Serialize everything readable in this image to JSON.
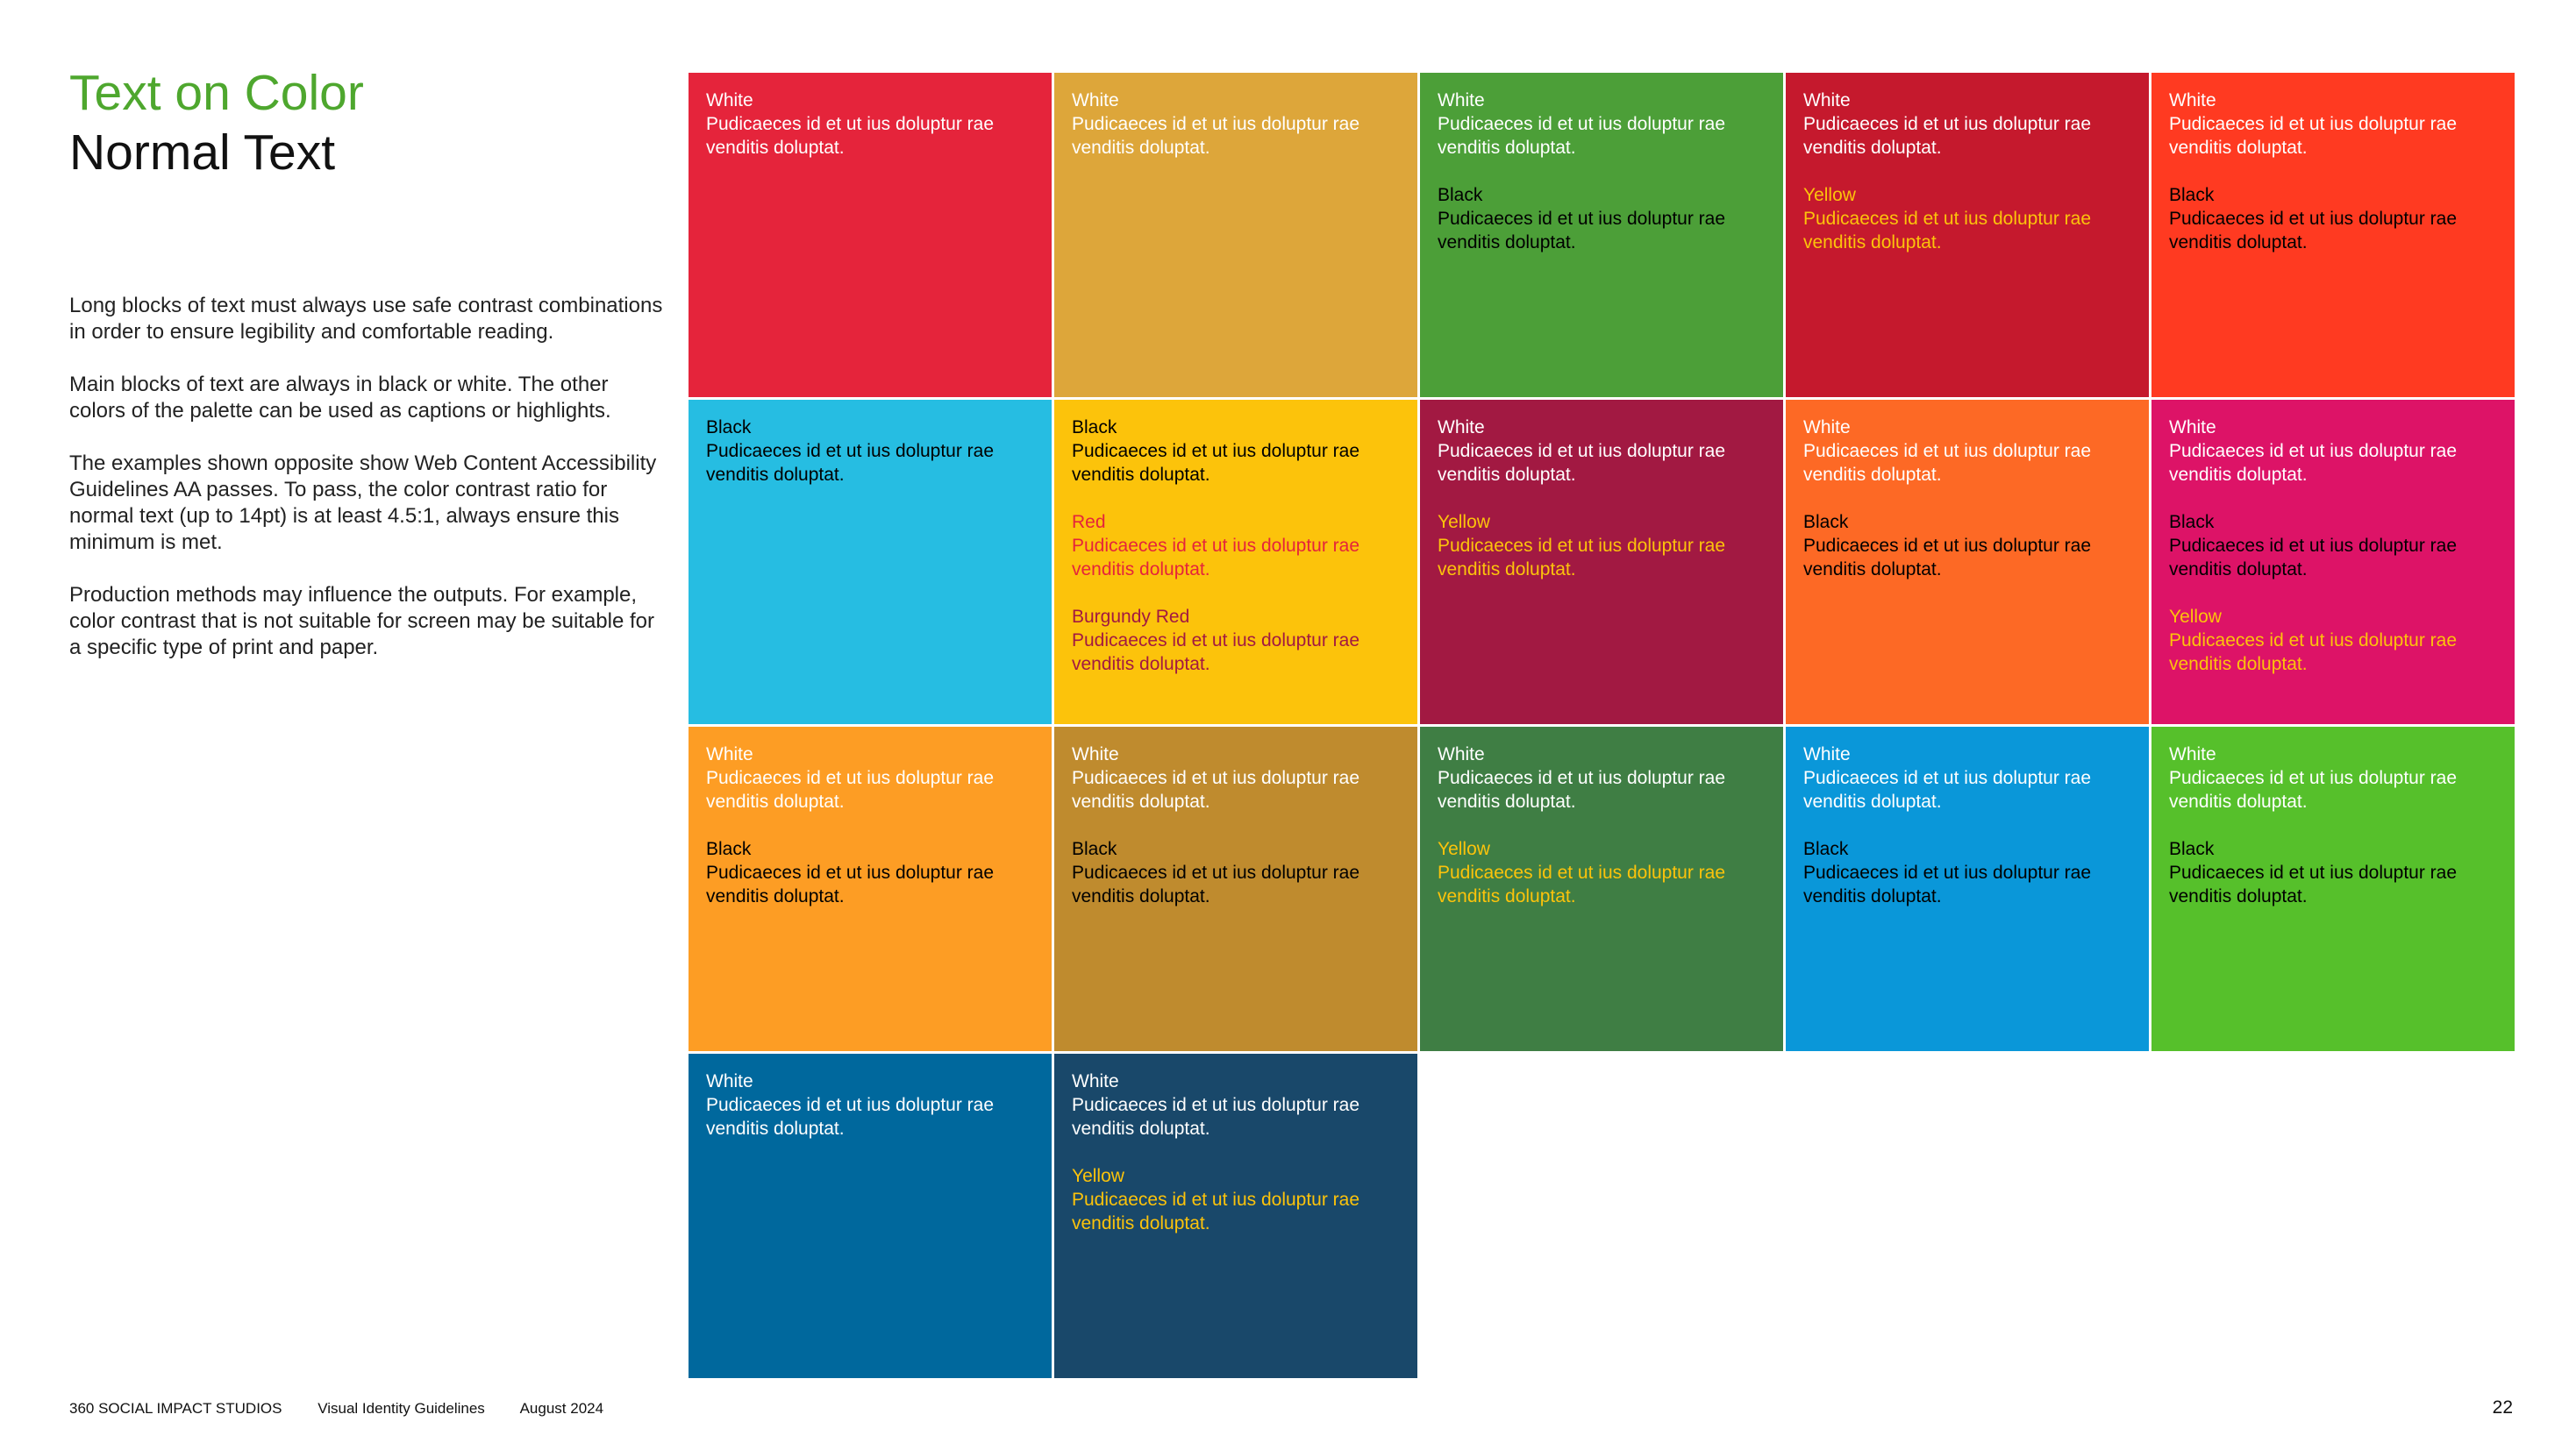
{
  "heading": {
    "title": "Text on Color",
    "subtitle": "Normal Text"
  },
  "intro": [
    "Long blocks of text must always use safe contrast combinations in order to ensure legibility and comfortable reading.",
    "Main blocks of text are always in black or white. The other colors of the palette can be used as captions or highlights.",
    "The examples shown opposite show Web Content Accessibility Guidelines AA passes. To pass, the color contrast ratio for normal text (up to 14pt) is at least 4.5:1, always ensure this minimum is met.",
    "Production methods may influence the outputs. For example, color contrast that is not suitable for screen may be suitable for a specific type of print and paper."
  ],
  "colors": {
    "title_green": "#4ea72e",
    "white": "#ffffff",
    "black": "#000000",
    "yellow": "#fcc30b",
    "red": "#e5243b",
    "burgundy_red": "#a21942"
  },
  "swatches": [
    {
      "bg": "#e5243b",
      "samples": [
        {
          "label": "White",
          "color": "#ffffff",
          "text": "Pudicaeces id et ut ius doluptur rae venditis doluptat."
        }
      ]
    },
    {
      "bg": "#dda63a",
      "samples": [
        {
          "label": "White",
          "color": "#ffffff",
          "text": "Pudicaeces id et ut ius doluptur rae venditis doluptat."
        }
      ]
    },
    {
      "bg": "#4c9f38",
      "samples": [
        {
          "label": "White",
          "color": "#ffffff",
          "text": "Pudicaeces id et ut ius doluptur rae venditis doluptat."
        },
        {
          "label": "Black",
          "color": "#000000",
          "text": "Pudicaeces id et ut ius doluptur rae venditis doluptat."
        }
      ]
    },
    {
      "bg": "#c5192d",
      "samples": [
        {
          "label": "White",
          "color": "#ffffff",
          "text": "Pudicaeces id et ut ius doluptur rae venditis doluptat."
        },
        {
          "label": "Yellow",
          "color": "#fcc30b",
          "text": "Pudicaeces id et ut ius doluptur rae venditis doluptat."
        }
      ]
    },
    {
      "bg": "#ff3a21",
      "samples": [
        {
          "label": "White",
          "color": "#ffffff",
          "text": "Pudicaeces id et ut ius doluptur rae venditis doluptat."
        },
        {
          "label": "Black",
          "color": "#000000",
          "text": "Pudicaeces id et ut ius doluptur rae venditis doluptat."
        }
      ]
    },
    {
      "bg": "#26bde2",
      "samples": [
        {
          "label": "Black",
          "color": "#000000",
          "text": "Pudicaeces id et ut ius doluptur rae venditis doluptat."
        }
      ]
    },
    {
      "bg": "#fcc30b",
      "samples": [
        {
          "label": "Black",
          "color": "#000000",
          "text": "Pudicaeces id et ut ius doluptur rae venditis doluptat."
        },
        {
          "label": "Red",
          "color": "#e5243b",
          "text": "Pudicaeces id et ut ius doluptur rae venditis doluptat."
        },
        {
          "label": "Burgundy Red",
          "color": "#a21942",
          "text": "Pudicaeces id et ut ius doluptur rae venditis doluptat."
        }
      ]
    },
    {
      "bg": "#a21942",
      "samples": [
        {
          "label": "White",
          "color": "#ffffff",
          "text": "Pudicaeces id et ut ius doluptur rae venditis doluptat."
        },
        {
          "label": "Yellow",
          "color": "#fcc30b",
          "text": "Pudicaeces id et ut ius doluptur rae venditis doluptat."
        }
      ]
    },
    {
      "bg": "#fd6925",
      "samples": [
        {
          "label": "White",
          "color": "#ffffff",
          "text": "Pudicaeces id et ut ius doluptur rae venditis doluptat."
        },
        {
          "label": "Black",
          "color": "#000000",
          "text": "Pudicaeces id et ut ius doluptur rae venditis doluptat."
        }
      ]
    },
    {
      "bg": "#dd1367",
      "samples": [
        {
          "label": "White",
          "color": "#ffffff",
          "text": "Pudicaeces id et ut ius doluptur rae venditis doluptat."
        },
        {
          "label": "Black",
          "color": "#000000",
          "text": "Pudicaeces id et ut ius doluptur rae venditis doluptat."
        },
        {
          "label": "Yellow",
          "color": "#fcc30b",
          "text": "Pudicaeces id et ut ius doluptur rae venditis doluptat."
        }
      ]
    },
    {
      "bg": "#fd9d24",
      "samples": [
        {
          "label": "White",
          "color": "#ffffff",
          "text": "Pudicaeces id et ut ius doluptur rae venditis doluptat."
        },
        {
          "label": "Black",
          "color": "#000000",
          "text": "Pudicaeces id et ut ius doluptur rae venditis doluptat."
        }
      ]
    },
    {
      "bg": "#bf8b2e",
      "samples": [
        {
          "label": "White",
          "color": "#ffffff",
          "text": "Pudicaeces id et ut ius doluptur rae venditis doluptat."
        },
        {
          "label": "Black",
          "color": "#000000",
          "text": "Pudicaeces id et ut ius doluptur rae venditis doluptat."
        }
      ]
    },
    {
      "bg": "#3f7e44",
      "samples": [
        {
          "label": "White",
          "color": "#ffffff",
          "text": "Pudicaeces id et ut ius doluptur rae venditis doluptat."
        },
        {
          "label": "Yellow",
          "color": "#fcc30b",
          "text": "Pudicaeces id et ut ius doluptur rae venditis doluptat."
        }
      ]
    },
    {
      "bg": "#0a97d9",
      "samples": [
        {
          "label": "White",
          "color": "#ffffff",
          "text": "Pudicaeces id et ut ius doluptur rae venditis doluptat."
        },
        {
          "label": "Black",
          "color": "#000000",
          "text": "Pudicaeces id et ut ius doluptur rae venditis doluptat."
        }
      ]
    },
    {
      "bg": "#56c02b",
      "samples": [
        {
          "label": "White",
          "color": "#ffffff",
          "text": "Pudicaeces id et ut ius doluptur rae venditis doluptat."
        },
        {
          "label": "Black",
          "color": "#000000",
          "text": "Pudicaeces id et ut ius doluptur rae venditis doluptat."
        }
      ]
    },
    {
      "bg": "#00689d",
      "samples": [
        {
          "label": "White",
          "color": "#ffffff",
          "text": "Pudicaeces id et ut ius doluptur rae venditis doluptat."
        }
      ]
    },
    {
      "bg": "#19486a",
      "samples": [
        {
          "label": "White",
          "color": "#ffffff",
          "text": "Pudicaeces id et ut ius doluptur rae venditis doluptat."
        },
        {
          "label": "Yellow",
          "color": "#fcc30b",
          "text": "Pudicaeces id et ut ius doluptur rae venditis doluptat."
        }
      ]
    }
  ],
  "footer": {
    "studio": "360 SOCIAL IMPACT STUDIOS",
    "document": "Visual Identity Guidelines",
    "date": "August 2024",
    "page_number": "22"
  }
}
